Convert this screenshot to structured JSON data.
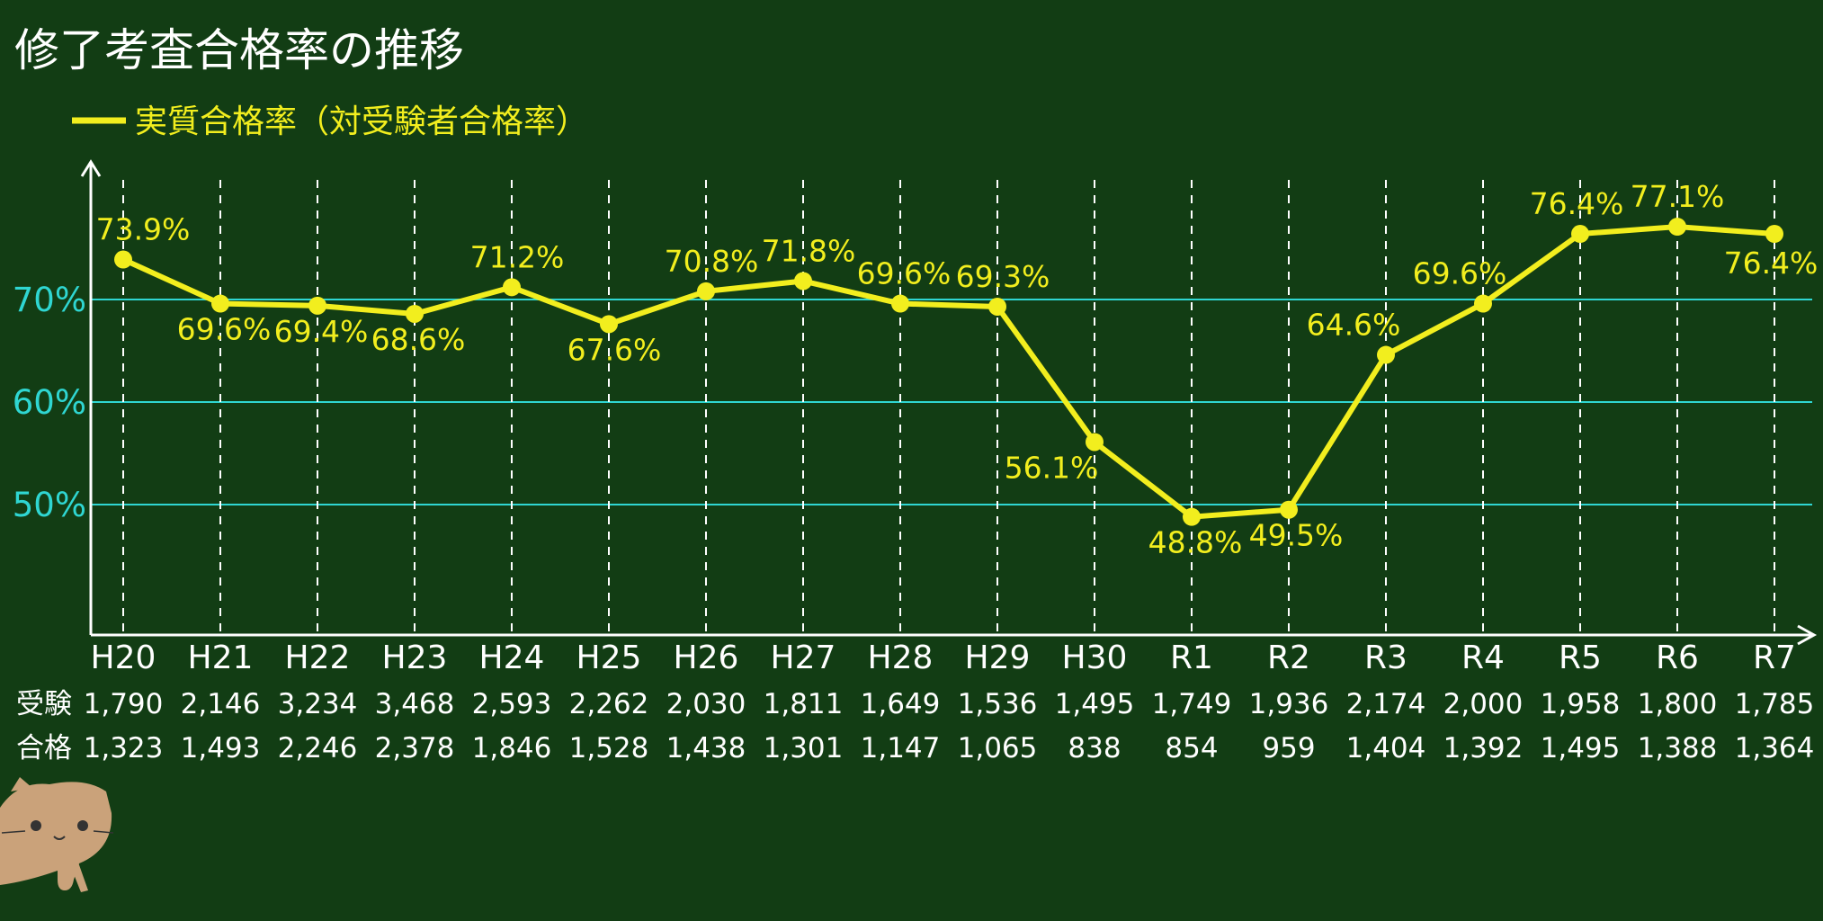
{
  "chart_data": {
    "type": "line",
    "title": "修了考査合格率の推移",
    "categories": [
      "H20",
      "H21",
      "H22",
      "H23",
      "H24",
      "H25",
      "H26",
      "H27",
      "H28",
      "H29",
      "H30",
      "R1",
      "R2",
      "R3",
      "R4",
      "R5",
      "R6",
      "R7"
    ],
    "series": [
      {
        "name": "実質合格率（対受験者合格率）",
        "values": [
          73.9,
          69.6,
          69.4,
          68.6,
          71.2,
          67.6,
          70.8,
          71.8,
          69.6,
          69.3,
          56.1,
          48.8,
          49.5,
          64.6,
          69.6,
          76.4,
          77.1,
          76.4
        ],
        "labels": [
          "73.9%",
          "69.6%",
          "69.4%",
          "68.6%",
          "71.2%",
          "67.6%",
          "70.8%",
          "71.8%",
          "69.6%",
          "69.3%",
          "56.1%",
          "48.8%",
          "49.5%",
          "64.6%",
          "69.6%",
          "76.4%",
          "77.1%",
          "76.4%"
        ]
      }
    ],
    "yticks": [
      {
        "value": 70,
        "label": "70%"
      },
      {
        "value": 60,
        "label": "60%"
      },
      {
        "value": 50,
        "label": "50%"
      }
    ],
    "ylim": [
      37,
      82
    ],
    "grid": {
      "horizontal": [
        70,
        60,
        50
      ],
      "vertical": "dashed"
    },
    "legend_position": "top-left",
    "table": {
      "rows": [
        {
          "label": "受験",
          "values": [
            "1,790",
            "2,146",
            "3,234",
            "3,468",
            "2,593",
            "2,262",
            "2,030",
            "1,811",
            "1,649",
            "1,536",
            "1,495",
            "1,749",
            "1,936",
            "2,174",
            "2,000",
            "1,958",
            "1,800",
            "1,785"
          ]
        },
        {
          "label": "合格",
          "values": [
            "1,323",
            "1,493",
            "2,246",
            "2,378",
            "1,846",
            "1,528",
            "1,438",
            "1,301",
            "1,147",
            "1,065",
            "838",
            "854",
            "959",
            "1,404",
            "1,392",
            "1,495",
            "1,388",
            "1,364"
          ]
        }
      ]
    },
    "colors": {
      "background": "#123d14",
      "line": "#f2ee1e",
      "gridline": "#2fd6d2",
      "axis": "#ffffff"
    }
  },
  "decoration": {
    "icon": "cat-icon"
  }
}
